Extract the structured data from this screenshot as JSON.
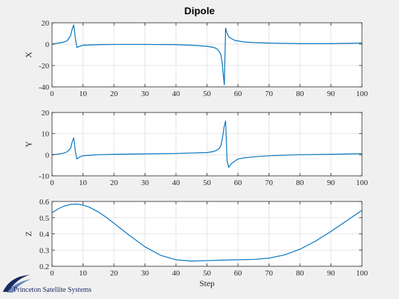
{
  "chart_data": [
    {
      "type": "line",
      "title": "Dipole",
      "ylabel": "X",
      "xlabel": "",
      "xlim": [
        0,
        100
      ],
      "ylim": [
        -40,
        20
      ],
      "xticks": [
        0,
        10,
        20,
        30,
        40,
        50,
        60,
        70,
        80,
        90,
        100
      ],
      "yticks": [
        -40,
        -20,
        0,
        20
      ],
      "grid": true,
      "color": "#0072BD",
      "x": [
        0,
        2,
        4,
        5,
        6,
        6.5,
        7,
        7.5,
        8,
        9,
        10,
        15,
        20,
        30,
        40,
        45,
        50,
        52,
        53,
        54,
        54.5,
        55,
        55.3,
        55.6,
        56,
        56.5,
        57,
        58,
        59,
        60,
        62,
        65,
        70,
        80,
        90,
        100
      ],
      "y": [
        0,
        1,
        2,
        3.5,
        8,
        14,
        18,
        6,
        -3,
        -2,
        -1,
        -0.5,
        -0.3,
        -0.3,
        -0.5,
        -1,
        -2,
        -3,
        -4,
        -7,
        -10,
        -20,
        -30,
        -38,
        15,
        10,
        7,
        5,
        3.5,
        3,
        2,
        1.5,
        1,
        0.5,
        0.5,
        1
      ]
    },
    {
      "type": "line",
      "ylabel": "Y",
      "xlabel": "",
      "xlim": [
        0,
        100
      ],
      "ylim": [
        -10,
        20
      ],
      "xticks": [
        0,
        10,
        20,
        30,
        40,
        50,
        60,
        70,
        80,
        90,
        100
      ],
      "yticks": [
        -10,
        0,
        10,
        20
      ],
      "grid": true,
      "color": "#0072BD",
      "x": [
        0,
        2,
        4,
        5,
        6,
        6.5,
        7,
        7.5,
        8,
        9,
        10,
        15,
        20,
        30,
        40,
        45,
        50,
        52,
        53,
        54,
        54.5,
        55,
        55.5,
        56,
        56.5,
        57,
        58,
        59,
        60,
        62,
        65,
        70,
        80,
        90,
        100
      ],
      "y": [
        0,
        0.3,
        0.8,
        1.5,
        3,
        6,
        8,
        2,
        -2,
        -1,
        -0.5,
        0,
        0.2,
        0.4,
        0.6,
        0.8,
        1,
        1.5,
        2,
        3,
        4.5,
        8,
        13,
        16,
        -3,
        -6,
        -4,
        -3,
        -2,
        -1.5,
        -1,
        -0.5,
        0,
        0.2,
        0.5
      ]
    },
    {
      "type": "line",
      "ylabel": "Z",
      "xlabel": "Step",
      "xlim": [
        0,
        100
      ],
      "ylim": [
        0.2,
        0.6
      ],
      "xticks": [
        0,
        10,
        20,
        30,
        40,
        50,
        60,
        70,
        80,
        90,
        100
      ],
      "yticks": [
        0.2,
        0.3,
        0.4,
        0.5,
        0.6
      ],
      "grid": true,
      "color": "#0072BD",
      "x": [
        0,
        2,
        4,
        6,
        8,
        10,
        12,
        15,
        18,
        20,
        25,
        30,
        35,
        40,
        45,
        50,
        55,
        60,
        65,
        70,
        75,
        80,
        85,
        90,
        95,
        100
      ],
      "y": [
        0.53,
        0.555,
        0.572,
        0.582,
        0.584,
        0.578,
        0.565,
        0.535,
        0.495,
        0.465,
        0.39,
        0.32,
        0.268,
        0.24,
        0.232,
        0.235,
        0.238,
        0.24,
        0.242,
        0.25,
        0.27,
        0.305,
        0.355,
        0.415,
        0.48,
        0.545
      ]
    }
  ],
  "logo": {
    "text": "Princeton Satellite Systems"
  }
}
